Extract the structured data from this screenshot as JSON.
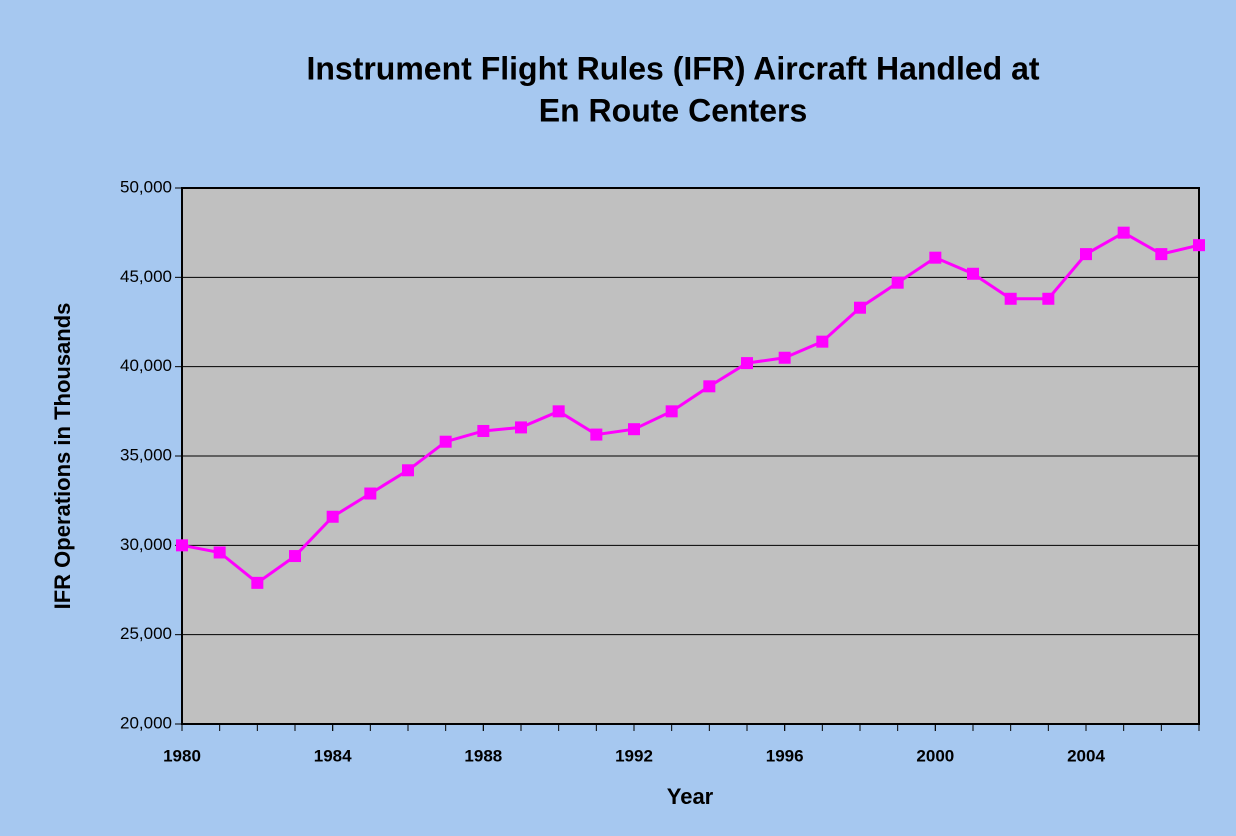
{
  "chart_data": {
    "type": "line",
    "title": "Instrument Flight Rules (IFR) Aircraft Handled at",
    "subtitle": "En Route Centers",
    "x_label": "Year",
    "y_label": "IFR Operations in Thousands",
    "x": [
      1980,
      1981,
      1982,
      1983,
      1984,
      1985,
      1986,
      1987,
      1988,
      1989,
      1990,
      1991,
      1992,
      1993,
      1994,
      1995,
      1996,
      1997,
      1998,
      1999,
      2000,
      2001,
      2002,
      2003,
      2004,
      2005,
      2006,
      2007
    ],
    "series": [
      {
        "name": "IFR Aircraft Handled",
        "color": "#ff00ff",
        "values": [
          30000,
          29600,
          27900,
          29400,
          31600,
          32900,
          34200,
          35800,
          36400,
          36600,
          37500,
          36200,
          36500,
          37500,
          38900,
          40200,
          40500,
          41400,
          43300,
          44700,
          46100,
          45200,
          43800,
          43800,
          46300,
          47500,
          46300,
          46800
        ]
      }
    ],
    "xlim": [
      1980,
      2007
    ],
    "xticks": [
      1980,
      1984,
      1988,
      1992,
      1996,
      2000,
      2004
    ],
    "ylim": [
      20000,
      50000
    ],
    "yticks": [
      {
        "value": 20000,
        "label": "20,000"
      },
      {
        "value": 25000,
        "label": "25,000"
      },
      {
        "value": 30000,
        "label": "30,000"
      },
      {
        "value": 35000,
        "label": "35,000"
      },
      {
        "value": 40000,
        "label": "40,000"
      },
      {
        "value": 45000,
        "label": "45,000"
      },
      {
        "value": 50000,
        "label": "50,000"
      }
    ],
    "grid": true
  }
}
